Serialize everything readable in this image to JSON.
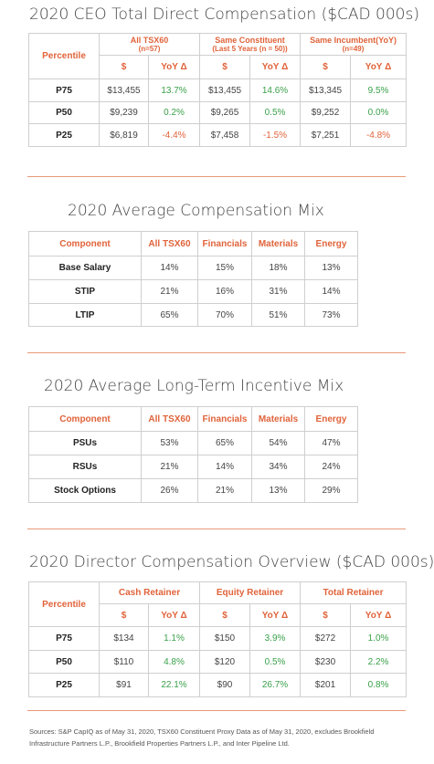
{
  "ceo": {
    "title": "2020 CEO Total Direct Compensation ($CAD 000s)",
    "row_header": "Percentile",
    "groups": [
      {
        "title": "All TSX60",
        "sub": "(n=57)"
      },
      {
        "title": "Same Constituent",
        "sub": "(Last 5 Years (n = 50))"
      },
      {
        "title": "Same Incumbent(YoY)",
        "sub": "(n=49)"
      }
    ],
    "sub_headers": {
      "value": "$",
      "change": "YoY Δ"
    },
    "rows": [
      {
        "label": "P75",
        "cells": [
          "$13,455",
          "13.7%",
          "$13,455",
          "14.6%",
          "$13,345",
          "9.5%"
        ]
      },
      {
        "label": "P50",
        "cells": [
          "$9,239",
          "0.2%",
          "$9,265",
          "0.5%",
          "$9,252",
          "0.0%"
        ]
      },
      {
        "label": "P25",
        "cells": [
          "$6,819",
          "-4.4%",
          "$7,458",
          "-1.5%",
          "$7,251",
          "-4.8%"
        ]
      }
    ]
  },
  "mix": {
    "title": "2020 Average Compensation Mix",
    "headers": [
      "Component",
      "All TSX60",
      "Financials",
      "Materials",
      "Energy"
    ],
    "rows": [
      {
        "label": "Base Salary",
        "cells": [
          "14%",
          "15%",
          "18%",
          "13%"
        ]
      },
      {
        "label": "STIP",
        "cells": [
          "21%",
          "16%",
          "31%",
          "14%"
        ]
      },
      {
        "label": "LTIP",
        "cells": [
          "65%",
          "70%",
          "51%",
          "73%"
        ]
      }
    ]
  },
  "lti": {
    "title": "2020 Average Long-Term Incentive Mix",
    "headers": [
      "Component",
      "All TSX60",
      "Financials",
      "Materials",
      "Energy"
    ],
    "rows": [
      {
        "label": "PSUs",
        "cells": [
          "53%",
          "65%",
          "54%",
          "47%"
        ]
      },
      {
        "label": "RSUs",
        "cells": [
          "21%",
          "14%",
          "34%",
          "24%"
        ]
      },
      {
        "label": "Stock Options",
        "cells": [
          "26%",
          "21%",
          "13%",
          "29%"
        ]
      }
    ]
  },
  "director": {
    "title": "2020 Director Compensation Overview ($CAD 000s)",
    "row_header": "Percentile",
    "groups": [
      {
        "title": "Cash Retainer"
      },
      {
        "title": "Equity Retainer"
      },
      {
        "title": "Total Retainer"
      }
    ],
    "sub_headers": {
      "value": "$",
      "change": "YoY Δ"
    },
    "rows": [
      {
        "label": "P75",
        "cells": [
          "$134",
          "1.1%",
          "$150",
          "3.9%",
          "$272",
          "1.0%"
        ]
      },
      {
        "label": "P50",
        "cells": [
          "$110",
          "4.8%",
          "$120",
          "0.5%",
          "$230",
          "2.2%"
        ]
      },
      {
        "label": "P25",
        "cells": [
          "$91",
          "22.1%",
          "$90",
          "26.7%",
          "$201",
          "0.8%"
        ]
      }
    ]
  },
  "sources": "Sources: S&P CapIQ as of May 31, 2020, TSX60 Constituent Proxy Data as of May 31, 2020, excludes Brookfield Infrastructure Partners L.P., Brookfield Properties Partners L.P., and Inter Pipeline Ltd.",
  "colors": {
    "accent": "#e0633a",
    "positive": "#3aa14a",
    "border": "#cfcfcf",
    "divider": "#e89a78"
  }
}
